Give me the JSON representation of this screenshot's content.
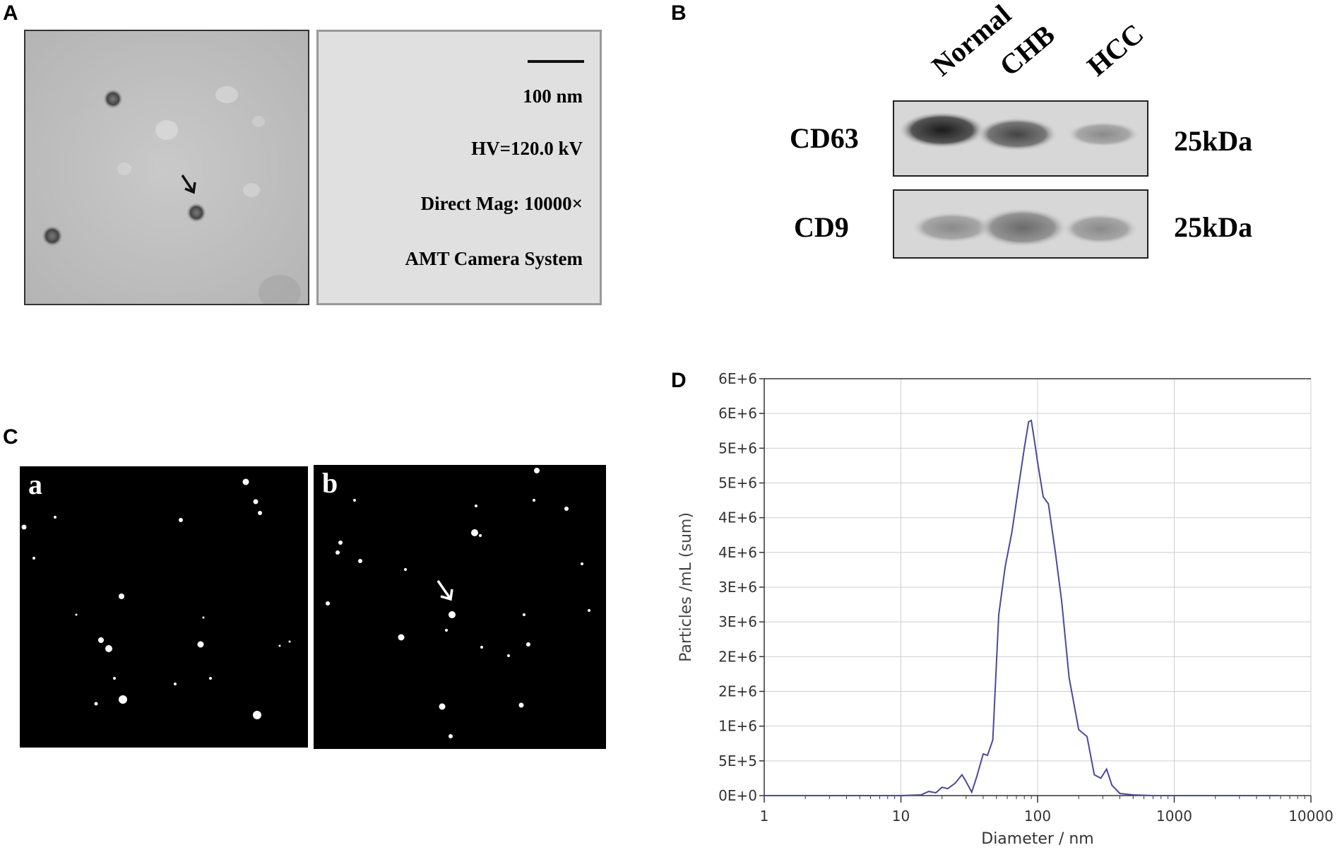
{
  "panels": {
    "a": "A",
    "b": "B",
    "c": "C",
    "d": "D"
  },
  "tem": {
    "scale_label": "100 nm",
    "hv": "HV=120.0 kV",
    "mag": "Direct Mag: 10000×",
    "camera": "AMT Camera System"
  },
  "western": {
    "lanes": [
      "Normal",
      "CHB",
      "HCC"
    ],
    "rows": [
      {
        "marker": "CD63",
        "size": "25kDa"
      },
      {
        "marker": "CD9",
        "size": "25kDa"
      }
    ]
  },
  "nta": {
    "sub_a": "a",
    "sub_b": "b"
  },
  "chart_data": {
    "type": "line",
    "xlabel": "Diameter / nm",
    "ylabel": "Particles /mL (sum)",
    "xscale": "log",
    "xlim": [
      1,
      10000
    ],
    "ylim": [
      0,
      6000000
    ],
    "grid": true,
    "line_color": "#4a4a9a",
    "xticks": [
      "1",
      "10",
      "100",
      "1000",
      "10000"
    ],
    "yticks": [
      "0E+0",
      "5E+5",
      "1E+6",
      "2E+6",
      "2E+6",
      "3E+6",
      "3E+6",
      "4E+6",
      "4E+6",
      "5E+6",
      "5E+6",
      "6E+6",
      "6E+6"
    ],
    "series": [
      {
        "x": [
          1,
          5,
          10,
          14,
          16,
          18,
          20,
          22,
          25,
          28,
          30,
          33,
          36,
          40,
          43,
          47,
          52,
          58,
          65,
          72,
          80,
          86,
          90,
          95,
          100,
          110,
          120,
          135,
          150,
          170,
          200,
          230,
          260,
          290,
          320,
          350,
          400,
          500,
          700,
          1000,
          2000,
          5800
        ],
        "y": [
          0,
          0,
          0,
          10000,
          60000,
          40000,
          120000,
          100000,
          180000,
          300000,
          200000,
          50000,
          280000,
          600000,
          580000,
          800000,
          2600000,
          3300000,
          3800000,
          4400000,
          5000000,
          5380000,
          5400000,
          5100000,
          4800000,
          4300000,
          4200000,
          3500000,
          2800000,
          1700000,
          950000,
          850000,
          300000,
          250000,
          380000,
          150000,
          30000,
          10000,
          0,
          0,
          0,
          0
        ]
      }
    ]
  }
}
